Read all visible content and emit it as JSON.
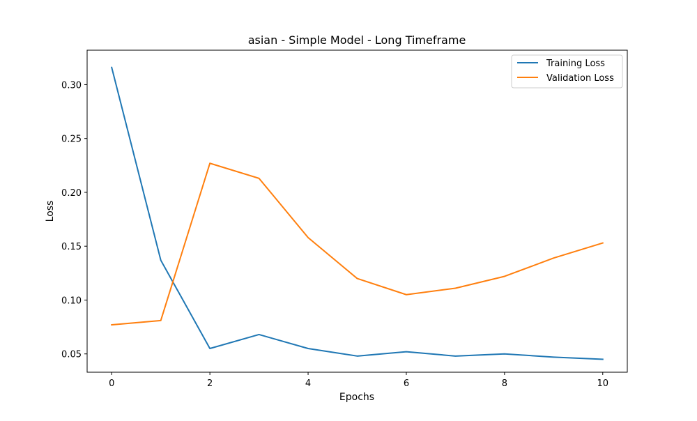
{
  "chart_data": {
    "type": "line",
    "title": "asian - Simple Model - Long Timeframe",
    "xlabel": "Epochs",
    "ylabel": "Loss",
    "xlim": [
      -0.5,
      10.5
    ],
    "ylim": [
      0.033,
      0.332
    ],
    "xticks": [
      0,
      2,
      4,
      6,
      8,
      10
    ],
    "xtick_labels": [
      "0",
      "2",
      "4",
      "6",
      "8",
      "10"
    ],
    "yticks": [
      0.05,
      0.1,
      0.15,
      0.2,
      0.25,
      0.3
    ],
    "ytick_labels": [
      "0.05",
      "0.10",
      "0.15",
      "0.20",
      "0.25",
      "0.30"
    ],
    "x": [
      0,
      1,
      2,
      3,
      4,
      5,
      6,
      7,
      8,
      9,
      10
    ],
    "series": [
      {
        "name": "Training Loss",
        "color": "#1f77b4",
        "values": [
          0.316,
          0.137,
          0.055,
          0.068,
          0.055,
          0.048,
          0.052,
          0.048,
          0.05,
          0.047,
          0.045
        ]
      },
      {
        "name": "Validation Loss",
        "color": "#ff7f0e",
        "values": [
          0.077,
          0.081,
          0.227,
          0.213,
          0.158,
          0.12,
          0.105,
          0.111,
          0.122,
          0.139,
          0.153
        ]
      }
    ],
    "legend_position": "top-right",
    "grid": false
  }
}
